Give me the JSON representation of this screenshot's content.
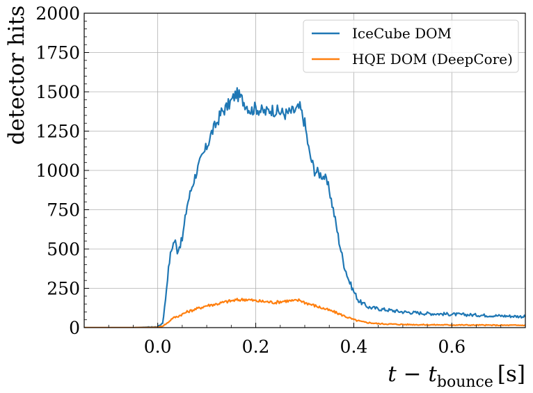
{
  "chart_data": {
    "type": "line",
    "title": "",
    "xlabel": "t − t",
    "xlabel_subscript": "bounce",
    "xlabel_unit": "[s]",
    "ylabel": "detector hits",
    "xlim": [
      -0.15,
      0.75
    ],
    "ylim": [
      0,
      2000
    ],
    "xticks": [
      0.0,
      0.2,
      0.4,
      0.6
    ],
    "xtick_labels": [
      "0.0",
      "0.2",
      "0.4",
      "0.6"
    ],
    "yticks": [
      0,
      250,
      500,
      750,
      1000,
      1250,
      1500,
      1750,
      2000
    ],
    "ytick_labels": [
      "0",
      "250",
      "500",
      "750",
      "1000",
      "1250",
      "1500",
      "1750",
      "2000"
    ],
    "grid": true,
    "legend_position": "top-right",
    "series": [
      {
        "name": "IceCube DOM",
        "color": "#1f77b4",
        "x": [
          -0.15,
          -0.1,
          -0.05,
          0.0,
          0.01,
          0.015,
          0.02,
          0.025,
          0.03,
          0.035,
          0.04,
          0.05,
          0.06,
          0.07,
          0.08,
          0.09,
          0.1,
          0.11,
          0.12,
          0.13,
          0.14,
          0.15,
          0.16,
          0.17,
          0.18,
          0.19,
          0.2,
          0.21,
          0.22,
          0.23,
          0.24,
          0.25,
          0.26,
          0.27,
          0.28,
          0.29,
          0.3,
          0.31,
          0.32,
          0.33,
          0.34,
          0.35,
          0.36,
          0.37,
          0.38,
          0.39,
          0.4,
          0.41,
          0.42,
          0.43,
          0.45,
          0.5,
          0.55,
          0.6,
          0.65,
          0.7,
          0.75
        ],
        "values": [
          0,
          0,
          0,
          5,
          30,
          150,
          320,
          450,
          520,
          560,
          490,
          560,
          780,
          900,
          1000,
          1080,
          1150,
          1240,
          1300,
          1370,
          1400,
          1440,
          1490,
          1460,
          1420,
          1380,
          1400,
          1380,
          1370,
          1390,
          1380,
          1370,
          1360,
          1370,
          1380,
          1400,
          1300,
          1100,
          1000,
          980,
          960,
          880,
          720,
          550,
          400,
          300,
          230,
          170,
          150,
          130,
          120,
          100,
          90,
          85,
          80,
          75,
          70
        ]
      },
      {
        "name": "HQE DOM (DeepCore)",
        "color": "#ff7f0e",
        "x": [
          -0.15,
          -0.1,
          -0.05,
          0.0,
          0.01,
          0.02,
          0.03,
          0.04,
          0.06,
          0.08,
          0.1,
          0.12,
          0.14,
          0.16,
          0.18,
          0.2,
          0.22,
          0.24,
          0.26,
          0.28,
          0.29,
          0.3,
          0.32,
          0.34,
          0.36,
          0.38,
          0.4,
          0.42,
          0.45,
          0.5,
          0.55,
          0.6,
          0.65,
          0.7,
          0.75
        ],
        "values": [
          0,
          0,
          0,
          2,
          10,
          30,
          60,
          70,
          100,
          120,
          140,
          150,
          165,
          175,
          180,
          170,
          165,
          160,
          170,
          170,
          175,
          160,
          140,
          120,
          100,
          75,
          50,
          35,
          25,
          20,
          18,
          17,
          16,
          15,
          15
        ]
      }
    ]
  }
}
